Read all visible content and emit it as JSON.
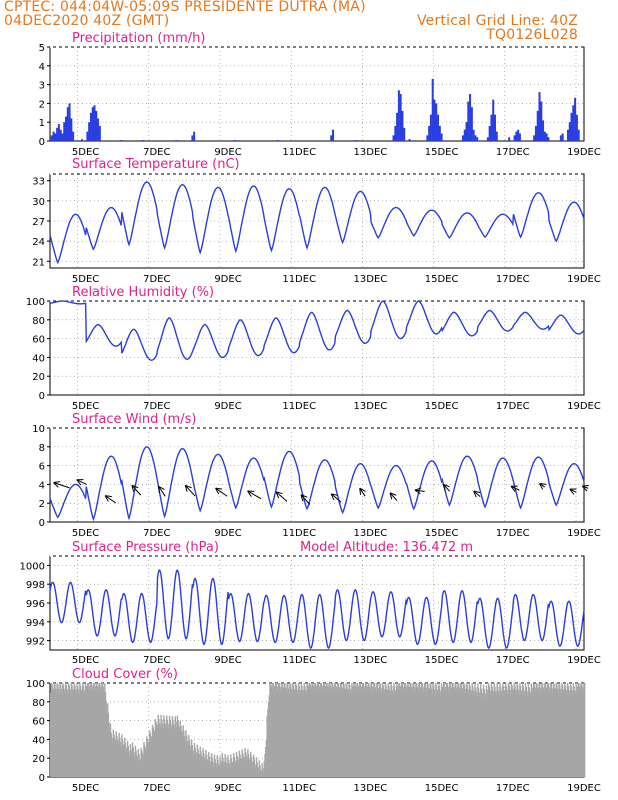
{
  "header": {
    "left_line1": "CPTEC:    044:04W-05:09S   PRESIDENTE DUTRA (MA)",
    "left_line2": "04DEC2020 40Z (GMT)",
    "right_line2": "Vertical Grid Line: 40Z",
    "right_line3": "TQ0126L028"
  },
  "colors": {
    "header": "#e8761a",
    "title": "#e0208f",
    "line": "#2a3ee0",
    "cloud": "#a6a6a6",
    "grid": "#888888"
  },
  "x_ticks": [
    "5DEC",
    "7DEC",
    "9DEC",
    "11DEC",
    "13DEC",
    "15DEC",
    "17DEC",
    "19DEC"
  ],
  "chart_data": [
    {
      "id": "precip",
      "type": "bar",
      "title": "Precipitation (mm/h)",
      "xlim": [
        4.0,
        19.0
      ],
      "ylim": [
        0,
        5
      ],
      "yticks": [
        "0",
        "1",
        "2",
        "3",
        "4",
        "5"
      ],
      "series": [
        {
          "values": [
            [
              4.05,
              0.3
            ],
            [
              4.1,
              0.5
            ],
            [
              4.15,
              0.4
            ],
            [
              4.2,
              0.7
            ],
            [
              4.25,
              0.9
            ],
            [
              4.3,
              0.6
            ],
            [
              4.35,
              0.4
            ],
            [
              4.4,
              1.0
            ],
            [
              4.45,
              1.3
            ],
            [
              4.5,
              1.8
            ],
            [
              4.55,
              2.0
            ],
            [
              4.6,
              1.2
            ],
            [
              4.65,
              0.5
            ],
            [
              4.9,
              0.1
            ],
            [
              5.05,
              0.5
            ],
            [
              5.1,
              1.0
            ],
            [
              5.15,
              1.5
            ],
            [
              5.2,
              1.8
            ],
            [
              5.25,
              1.9
            ],
            [
              5.3,
              1.6
            ],
            [
              5.35,
              1.2
            ],
            [
              5.4,
              0.8
            ],
            [
              6.0,
              0.05
            ],
            [
              6.6,
              0.05
            ],
            [
              7.55,
              0.05
            ],
            [
              8.0,
              0.3
            ],
            [
              8.05,
              0.5
            ],
            [
              9.2,
              0.05
            ],
            [
              10.4,
              0.05
            ],
            [
              11.9,
              0.3
            ],
            [
              11.95,
              0.6
            ],
            [
              12.6,
              0.05
            ],
            [
              13.65,
              0.3
            ],
            [
              13.7,
              0.8
            ],
            [
              13.75,
              1.5
            ],
            [
              13.8,
              2.7
            ],
            [
              13.85,
              2.5
            ],
            [
              13.9,
              1.6
            ],
            [
              13.95,
              0.7
            ],
            [
              14.1,
              0.1
            ],
            [
              14.6,
              0.3
            ],
            [
              14.65,
              0.8
            ],
            [
              14.7,
              1.4
            ],
            [
              14.75,
              3.3
            ],
            [
              14.8,
              2.2
            ],
            [
              14.85,
              2.0
            ],
            [
              14.9,
              1.4
            ],
            [
              14.95,
              0.8
            ],
            [
              15.0,
              0.4
            ],
            [
              15.6,
              0.3
            ],
            [
              15.65,
              0.6
            ],
            [
              15.7,
              1.0
            ],
            [
              15.75,
              2.1
            ],
            [
              15.8,
              2.5
            ],
            [
              15.85,
              1.8
            ],
            [
              15.9,
              0.6
            ],
            [
              15.95,
              0.3
            ],
            [
              16.0,
              0.2
            ],
            [
              16.3,
              0.2
            ],
            [
              16.35,
              0.8
            ],
            [
              16.4,
              1.4
            ],
            [
              16.45,
              2.2
            ],
            [
              16.5,
              1.4
            ],
            [
              16.55,
              0.5
            ],
            [
              16.9,
              0.2
            ],
            [
              17.05,
              0.3
            ],
            [
              17.1,
              0.5
            ],
            [
              17.15,
              0.6
            ],
            [
              17.2,
              0.4
            ],
            [
              17.6,
              0.3
            ],
            [
              17.65,
              0.8
            ],
            [
              17.7,
              1.6
            ],
            [
              17.75,
              2.6
            ],
            [
              17.8,
              2.1
            ],
            [
              17.85,
              1.1
            ],
            [
              17.9,
              0.5
            ],
            [
              17.95,
              0.4
            ],
            [
              18.0,
              0.2
            ],
            [
              18.35,
              0.3
            ],
            [
              18.4,
              0.4
            ],
            [
              18.55,
              0.6
            ],
            [
              18.6,
              1.0
            ],
            [
              18.65,
              1.5
            ],
            [
              18.7,
              1.9
            ],
            [
              18.75,
              2.3
            ],
            [
              18.8,
              1.4
            ],
            [
              18.85,
              0.6
            ]
          ]
        }
      ]
    },
    {
      "id": "temp",
      "type": "line",
      "title": "Surface Temperature (nC)",
      "xlim": [
        4.0,
        19.0
      ],
      "ylim": [
        20,
        34
      ],
      "yticks": [
        "21",
        "24",
        "27",
        "30",
        "33"
      ],
      "daily_min": [
        20.8,
        22.8,
        23.5,
        23.0,
        22.3,
        22.5,
        22.6,
        23.0,
        23.8,
        24.5,
        24.8,
        24.5,
        24.6,
        24.6,
        24.0,
        24.5
      ],
      "daily_max": [
        28.0,
        29.0,
        32.8,
        32.4,
        32.0,
        32.2,
        31.8,
        32.0,
        31.4,
        29.0,
        28.6,
        28.2,
        28.0,
        31.2,
        29.8,
        27.8
      ]
    },
    {
      "id": "rh",
      "type": "line",
      "title": "Relative Humidity (%)",
      "xlim": [
        4.0,
        19.0
      ],
      "ylim": [
        0,
        100
      ],
      "yticks": [
        "0",
        "20",
        "40",
        "60",
        "80",
        "100"
      ],
      "daily_min": [
        97,
        52,
        37,
        38,
        40,
        42,
        45,
        48,
        55,
        60,
        65,
        63,
        68,
        70,
        65,
        72
      ],
      "daily_max": [
        100,
        75,
        70,
        82,
        75,
        80,
        82,
        88,
        90,
        100,
        100,
        88,
        90,
        88,
        85,
        85
      ]
    },
    {
      "id": "wind",
      "type": "line",
      "title": "Surface Wind (m/s)",
      "xlim": [
        4.0,
        19.0
      ],
      "ylim": [
        0,
        10
      ],
      "yticks": [
        "0",
        "2",
        "4",
        "6",
        "8",
        "10"
      ],
      "daily_min": [
        0.5,
        0.3,
        0.4,
        0.6,
        1.2,
        1.5,
        1.6,
        1.4,
        1.0,
        1.5,
        1.4,
        1.8,
        1.6,
        1.5,
        1.8,
        1.5
      ],
      "daily_max": [
        4.0,
        7.0,
        8.0,
        7.8,
        7.2,
        6.8,
        7.5,
        6.6,
        6.2,
        6.0,
        6.5,
        7.0,
        6.8,
        6.9,
        6.2,
        5.5
      ],
      "vectors": [
        [
          4.1,
          4.2,
          220,
          0.8
        ],
        [
          4.75,
          4.5,
          230,
          0.6
        ],
        [
          5.55,
          2.8,
          240,
          0.8
        ],
        [
          6.3,
          3.9,
          250,
          1.0
        ],
        [
          7.05,
          3.8,
          255,
          1.0
        ],
        [
          7.8,
          3.9,
          250,
          1.1
        ],
        [
          8.65,
          3.6,
          240,
          0.9
        ],
        [
          9.55,
          3.3,
          235,
          0.9
        ],
        [
          10.35,
          3.2,
          245,
          1.0
        ],
        [
          11.05,
          2.9,
          250,
          1.0
        ],
        [
          11.9,
          3.0,
          245,
          0.9
        ],
        [
          12.7,
          3.6,
          255,
          0.8
        ],
        [
          13.55,
          3.1,
          250,
          0.8
        ],
        [
          14.25,
          3.4,
          200,
          0.4
        ],
        [
          15.05,
          4.0,
          250,
          0.7
        ],
        [
          15.9,
          3.3,
          245,
          0.6
        ],
        [
          16.95,
          3.8,
          230,
          0.5
        ],
        [
          17.75,
          4.1,
          240,
          0.4
        ],
        [
          18.6,
          3.5,
          230,
          0.4
        ],
        [
          18.95,
          3.8,
          220,
          0.3
        ]
      ]
    },
    {
      "id": "press",
      "type": "line",
      "title": "Surface Pressure (hPa)",
      "annotation": "Model Altitude: 136.472 m",
      "xlim": [
        4.0,
        19.0
      ],
      "ylim": [
        991,
        1001
      ],
      "yticks": [
        "992",
        "994",
        "996",
        "998",
        "1000"
      ],
      "daily_min": [
        993.9,
        992.5,
        991.8,
        992.2,
        991.6,
        991.9,
        991.8,
        991.2,
        992.0,
        992.4,
        991.6,
        991.8,
        991.2,
        992.0,
        991.4,
        991.9
      ],
      "daily_max": [
        998.2,
        997.4,
        997.0,
        999.5,
        998.6,
        997.0,
        996.8,
        996.9,
        997.4,
        997.2,
        996.6,
        997.3,
        996.5,
        996.9,
        996.2,
        996.4
      ]
    },
    {
      "id": "cloud",
      "type": "area",
      "title": "Cloud Cover (%)",
      "xlim": [
        4.0,
        19.0
      ],
      "ylim": [
        0,
        100
      ],
      "yticks": [
        "0",
        "20",
        "40",
        "60",
        "80",
        "100"
      ],
      "levels": [
        [
          4.0,
          95
        ],
        [
          4.5,
          96
        ],
        [
          5.0,
          97
        ],
        [
          5.5,
          98
        ],
        [
          5.7,
          45
        ],
        [
          6.0,
          40
        ],
        [
          6.5,
          20
        ],
        [
          7.0,
          60
        ],
        [
          7.5,
          60
        ],
        [
          8.0,
          30
        ],
        [
          8.5,
          20
        ],
        [
          9.0,
          15
        ],
        [
          9.5,
          25
        ],
        [
          10.0,
          8
        ],
        [
          10.15,
          98
        ],
        [
          11.0,
          96
        ],
        [
          11.5,
          98
        ],
        [
          12.0,
          99
        ],
        [
          12.5,
          97
        ],
        [
          13.0,
          98
        ],
        [
          13.5,
          96
        ],
        [
          14.0,
          97
        ],
        [
          14.5,
          98
        ],
        [
          15.0,
          96
        ],
        [
          15.5,
          97
        ],
        [
          16.0,
          94
        ],
        [
          16.5,
          92
        ],
        [
          17.0,
          96
        ],
        [
          17.5,
          95
        ],
        [
          18.0,
          97
        ],
        [
          18.5,
          96
        ],
        [
          19.0,
          97
        ]
      ]
    }
  ]
}
